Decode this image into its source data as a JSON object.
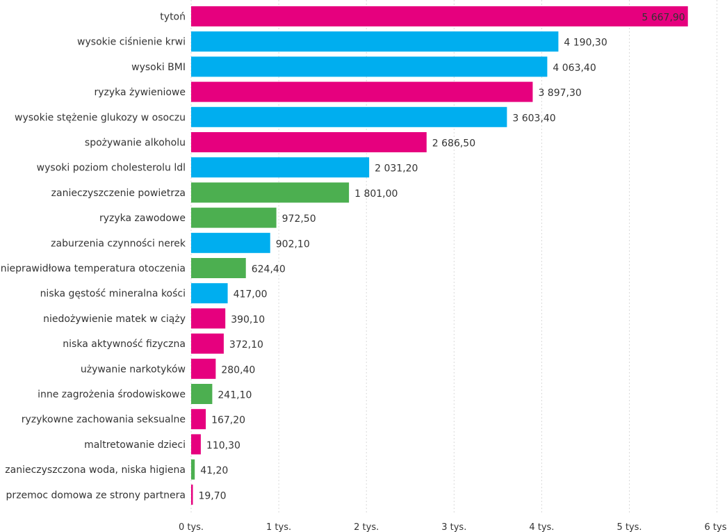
{
  "chart_data": {
    "type": "bar",
    "orientation": "horizontal",
    "title": "",
    "xlabel": "",
    "ylabel": "",
    "xlim": [
      0,
      6000
    ],
    "grid": true,
    "legend": "none",
    "categories": [
      "tytoń",
      "wysokie ciśnienie krwi",
      "wysoki BMI",
      "ryzyka żywieniowe",
      "wysokie stężenie glukozy w osoczu",
      "spożywanie alkoholu",
      "wysoki poziom cholesterolu ldl",
      "zanieczyszczenie powietrza",
      "ryzyka zawodowe",
      "zaburzenia czynności nerek",
      "nieprawidłowa temperatura otoczenia",
      "niska gęstość mineralna kości",
      "niedożywienie matek w ciąży",
      "niska aktywność fizyczna",
      "używanie narkotyków",
      "inne zagrożenia środowiskowe",
      "ryzykowne zachowania seksualne",
      "maltretowanie dzieci",
      "zanieczyszczona woda, niska higiena",
      "przemoc domowa ze strony partnera"
    ],
    "values": [
      5667.9,
      4190.3,
      4063.4,
      3897.3,
      3603.4,
      2686.5,
      2031.2,
      1801.0,
      972.5,
      902.1,
      624.4,
      417.0,
      390.1,
      372.1,
      280.4,
      241.1,
      167.2,
      110.3,
      41.2,
      19.7
    ],
    "value_labels": [
      "5 667,90",
      "4 190,30",
      "4 063,40",
      "3 897,30",
      "3 603,40",
      "2 686,50",
      "2 031,20",
      "1 801,00",
      "972,50",
      "902,10",
      "624,40",
      "417,00",
      "390,10",
      "372,10",
      "280,40",
      "241,10",
      "167,20",
      "110,30",
      "41,20",
      "19,70"
    ],
    "bar_colors": [
      "#e6007e",
      "#00aeef",
      "#00aeef",
      "#e6007e",
      "#00aeef",
      "#e6007e",
      "#00aeef",
      "#4caf50",
      "#4caf50",
      "#00aeef",
      "#4caf50",
      "#00aeef",
      "#e6007e",
      "#e6007e",
      "#e6007e",
      "#4caf50",
      "#e6007e",
      "#e6007e",
      "#4caf50",
      "#e6007e"
    ],
    "x_ticks": [
      0,
      1000,
      2000,
      3000,
      4000,
      5000,
      6000
    ],
    "x_tick_labels": [
      "0 tys.",
      "1 tys.",
      "2 tys.",
      "3 tys.",
      "4 tys.",
      "5 tys.",
      "6 tys."
    ]
  }
}
